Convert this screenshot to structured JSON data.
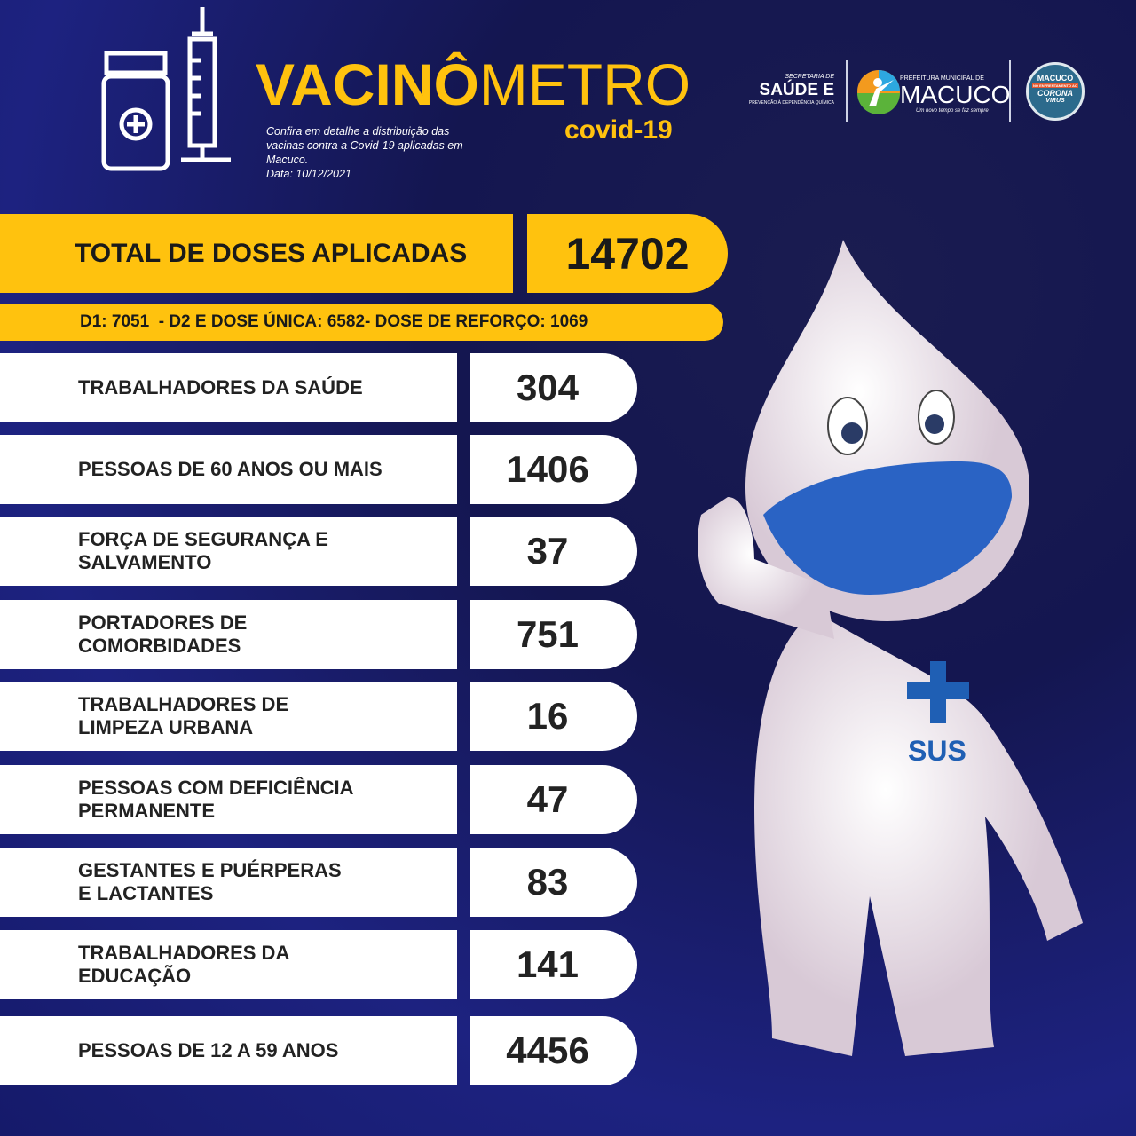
{
  "header": {
    "title_bold": "VACINÔ",
    "title_thin": "METRO",
    "subtitle": "covid-19",
    "description": "Confira em detalhe a distribuição das vacinas contra a Covid-19 aplicadas em Macuco.",
    "date": "Data: 10/12/2021"
  },
  "logos": {
    "secretaria_top": "SECRETARIA DE",
    "secretaria_main": "SAÚDE E",
    "secretaria_bottom": "PREVENÇÃO À DEPENDÊNCIA QUÍMICA",
    "prefeitura_top": "PREFEITURA MUNICIPAL DE",
    "prefeitura_main": "MACUCO",
    "prefeitura_slogan": "Um novo tempo se faz sempre",
    "badge_top": "MACUCO",
    "badge_mid": "NO ENFRENTAMENTO AO",
    "badge_main": "CORONA",
    "badge_sub": "VIRUS"
  },
  "total": {
    "label": "TOTAL DE DOSES APLICADAS",
    "value": "14702",
    "breakdown": "D1: 7051  - D2 E DOSE ÚNICA: 6582- DOSE DE REFORÇO: 1069"
  },
  "groups": [
    {
      "label": "TRABALHADORES DA SAÚDE",
      "value": "304"
    },
    {
      "label": "PESSOAS DE 60 ANOS OU MAIS",
      "value": "1406"
    },
    {
      "label": "FORÇA DE SEGURANÇA E\nSALVAMENTO",
      "value": "37"
    },
    {
      "label": "PORTADORES DE\nCOMORBIDADES",
      "value": "751"
    },
    {
      "label": "TRABALHADORES DE\nLIMPEZA URBANA",
      "value": "16"
    },
    {
      "label": "PESSOAS COM DEFICIÊNCIA\nPERMANENTE",
      "value": "47"
    },
    {
      "label": "GESTANTES E PUÉRPERAS\nE LACTANTES",
      "value": "83"
    },
    {
      "label": "TRABALHADORES DA\nEDUCAÇÃO",
      "value": "141"
    },
    {
      "label": "PESSOAS DE 12 A 59 ANOS",
      "value": "4456"
    }
  ],
  "mascot": {
    "chest_label": "SUS"
  },
  "colors": {
    "accent": "#ffc20e",
    "background": "#1b1f75",
    "sus_blue": "#1f5fb4"
  }
}
